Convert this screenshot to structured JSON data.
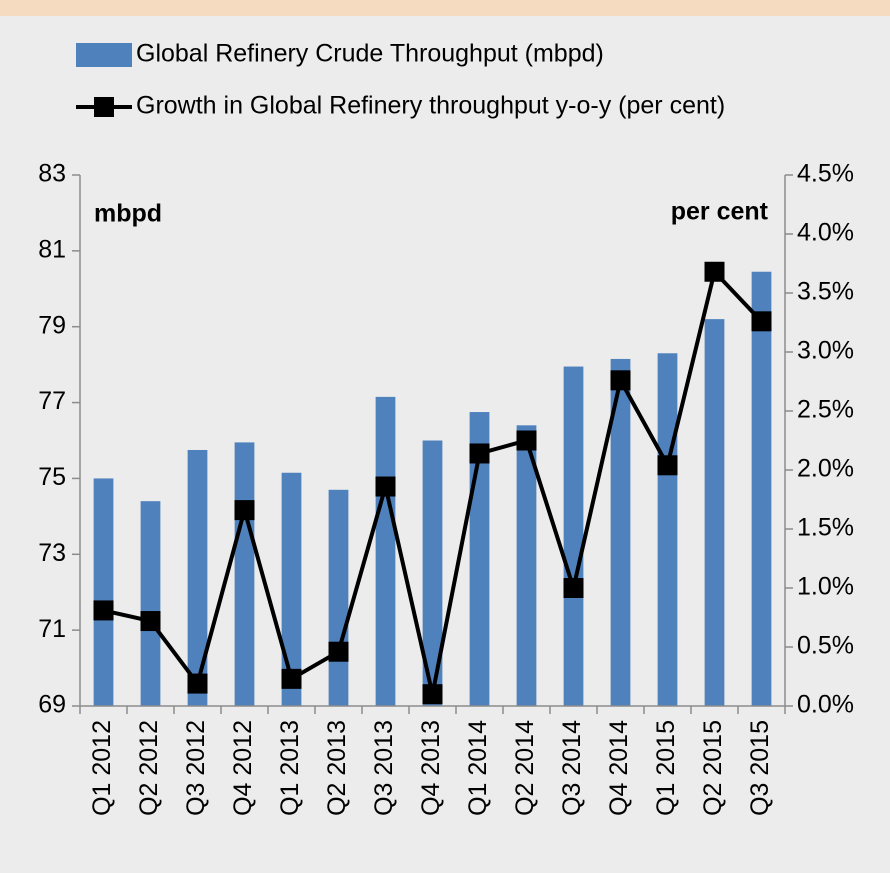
{
  "chart_data": {
    "type": "bar-line",
    "categories": [
      "Q1 2012",
      "Q2 2012",
      "Q3 2012",
      "Q4 2012",
      "Q1 2013",
      "Q2 2013",
      "Q3 2013",
      "Q4 2013",
      "Q1 2014",
      "Q2 2014",
      "Q3 2014",
      "Q4 2014",
      "Q1 2015",
      "Q2 2015",
      "Q3 2015"
    ],
    "series": [
      {
        "name": "Global Refinery Crude Throughput (mbpd)",
        "type": "bar",
        "color": "#4f81bd",
        "axis": "y",
        "values": [
          75.0,
          74.4,
          75.75,
          75.95,
          75.15,
          74.7,
          77.15,
          76.0,
          76.75,
          76.4,
          77.95,
          78.15,
          78.3,
          79.2,
          80.45
        ]
      },
      {
        "name": "Growth in Global Refinery throughput y-o-y (per cent)",
        "type": "line",
        "color": "#000000",
        "axis": "y2",
        "values": [
          0.81,
          0.72,
          0.19,
          1.66,
          0.23,
          0.46,
          1.86,
          0.1,
          2.14,
          2.25,
          1.0,
          2.76,
          2.04,
          3.68,
          3.26
        ]
      }
    ],
    "ylabel": "mbpd",
    "y2label": "per cent",
    "ylim": [
      69,
      83
    ],
    "yticks": [
      69,
      71,
      73,
      75,
      77,
      79,
      81,
      83
    ],
    "y2lim": [
      0,
      4.5
    ],
    "y2ticks": [
      {
        "value": 0,
        "label": "0.0%"
      },
      {
        "value": 0.5,
        "label": "0.5%"
      },
      {
        "value": 1,
        "label": "1.0%"
      },
      {
        "value": 1.5,
        "label": "1.5%"
      },
      {
        "value": 2,
        "label": "2.0%"
      },
      {
        "value": 2.5,
        "label": "2.5%"
      },
      {
        "value": 3,
        "label": "3.0%"
      },
      {
        "value": 3.5,
        "label": "3.5%"
      },
      {
        "value": 4,
        "label": "4.0%"
      },
      {
        "value": 4.5,
        "label": "4.5%"
      }
    ],
    "grid": false,
    "legend": "top"
  }
}
